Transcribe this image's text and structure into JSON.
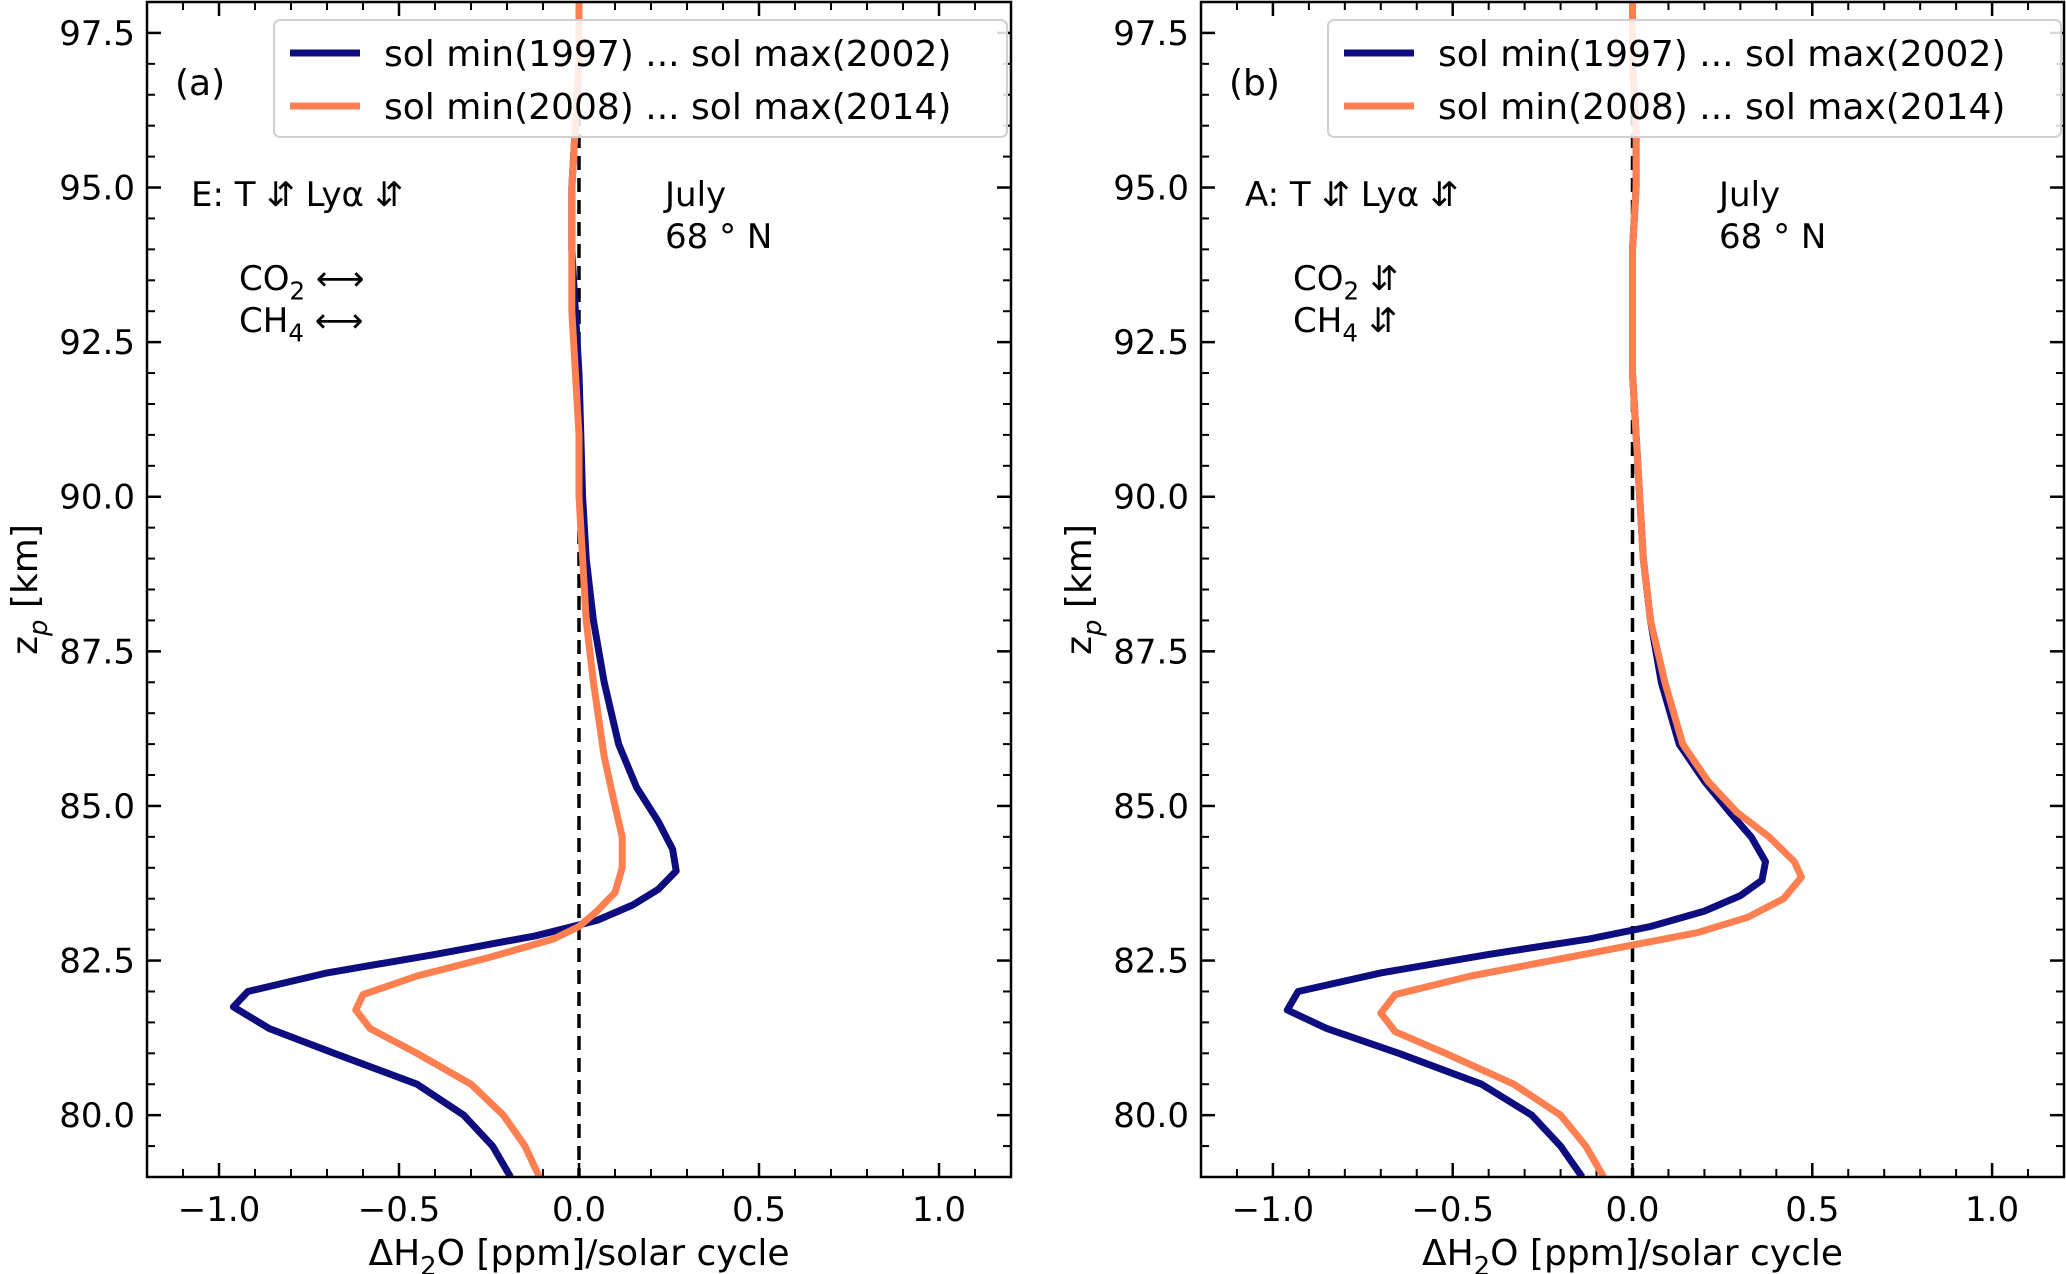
{
  "chart_data": [
    {
      "type": "line",
      "panel_label": "(a)",
      "xlabel": "ΔH₂O [ppm]/solar cycle",
      "ylabel": "z_p [km]",
      "xlim": [
        -1.2,
        1.2
      ],
      "ylim": [
        79.0,
        98.0
      ],
      "xticks": [
        -1.0,
        -0.5,
        0.0,
        0.5,
        1.0
      ],
      "xtick_labels": [
        "−1.0",
        "−0.5",
        "0.0",
        "0.5",
        "1.0"
      ],
      "yticks": [
        80.0,
        82.5,
        85.0,
        87.5,
        90.0,
        92.5,
        95.0,
        97.5
      ],
      "ytick_labels": [
        "80.0",
        "82.5",
        "85.0",
        "87.5",
        "90.0",
        "92.5",
        "95.0",
        "97.5"
      ],
      "grid": false,
      "legend_position": "top-right",
      "reference_line": {
        "x": 0.0,
        "style": "dashed",
        "color": "#000000"
      },
      "annotations": {
        "scenario": "E: T ⇵  Lyα ⇵",
        "co2": "CO₂ ⟷",
        "ch4": "CH₄ ⟷",
        "month": "July",
        "latitude": "68 ° N"
      },
      "series": [
        {
          "name": "sol min(1997) ... sol max(2002)",
          "color": "#0d0d80",
          "points": [
            [
              -0.19,
              79.0
            ],
            [
              -0.24,
              79.5
            ],
            [
              -0.32,
              80.0
            ],
            [
              -0.45,
              80.5
            ],
            [
              -0.68,
              81.0
            ],
            [
              -0.86,
              81.4
            ],
            [
              -0.96,
              81.75
            ],
            [
              -0.92,
              82.0
            ],
            [
              -0.7,
              82.3
            ],
            [
              -0.4,
              82.6
            ],
            [
              -0.12,
              82.9
            ],
            [
              0.05,
              83.15
            ],
            [
              0.15,
              83.4
            ],
            [
              0.22,
              83.65
            ],
            [
              0.27,
              83.95
            ],
            [
              0.26,
              84.3
            ],
            [
              0.22,
              84.75
            ],
            [
              0.16,
              85.3
            ],
            [
              0.11,
              86.0
            ],
            [
              0.07,
              87.0
            ],
            [
              0.04,
              88.0
            ],
            [
              0.02,
              89.0
            ],
            [
              0.01,
              90.0
            ],
            [
              0.005,
              91.0
            ],
            [
              0.0,
              92.0
            ],
            [
              -0.01,
              93.0
            ],
            [
              -0.02,
              94.0
            ],
            [
              -0.02,
              95.0
            ],
            [
              -0.01,
              96.0
            ],
            [
              0.0,
              97.0
            ],
            [
              0.0,
              98.0
            ]
          ]
        },
        {
          "name": "sol min(2008) ... sol max(2014)",
          "color": "#ff7f50",
          "points": [
            [
              -0.11,
              79.0
            ],
            [
              -0.15,
              79.5
            ],
            [
              -0.21,
              80.0
            ],
            [
              -0.3,
              80.5
            ],
            [
              -0.45,
              81.0
            ],
            [
              -0.58,
              81.4
            ],
            [
              -0.62,
              81.7
            ],
            [
              -0.6,
              81.95
            ],
            [
              -0.45,
              82.25
            ],
            [
              -0.25,
              82.55
            ],
            [
              -0.07,
              82.85
            ],
            [
              0.0,
              83.05
            ],
            [
              0.05,
              83.3
            ],
            [
              0.1,
              83.6
            ],
            [
              0.12,
              84.0
            ],
            [
              0.12,
              84.5
            ],
            [
              0.1,
              85.0
            ],
            [
              0.07,
              85.8
            ],
            [
              0.04,
              87.0
            ],
            [
              0.02,
              88.0
            ],
            [
              0.01,
              89.0
            ],
            [
              0.0,
              90.0
            ],
            [
              0.0,
              91.0
            ],
            [
              -0.01,
              92.0
            ],
            [
              -0.02,
              93.0
            ],
            [
              -0.02,
              94.0
            ],
            [
              -0.02,
              95.0
            ],
            [
              -0.01,
              96.0
            ],
            [
              0.0,
              97.0
            ],
            [
              0.0,
              98.0
            ]
          ]
        }
      ]
    },
    {
      "type": "line",
      "panel_label": "(b)",
      "xlabel": "ΔH₂O [ppm]/solar cycle",
      "ylabel": "z_p [km]",
      "xlim": [
        -1.2,
        1.2
      ],
      "ylim": [
        79.0,
        98.0
      ],
      "xticks": [
        -1.0,
        -0.5,
        0.0,
        0.5,
        1.0
      ],
      "xtick_labels": [
        "−1.0",
        "−0.5",
        "0.0",
        "0.5",
        "1.0"
      ],
      "yticks": [
        80.0,
        82.5,
        85.0,
        87.5,
        90.0,
        92.5,
        95.0,
        97.5
      ],
      "ytick_labels": [
        "80.0",
        "82.5",
        "85.0",
        "87.5",
        "90.0",
        "92.5",
        "95.0",
        "97.5"
      ],
      "grid": false,
      "legend_position": "top-right",
      "reference_line": {
        "x": 0.0,
        "style": "dashed",
        "color": "#000000"
      },
      "annotations": {
        "scenario": "A: T ⇵  Lyα ⇵",
        "co2": "CO₂ ⇵",
        "ch4": "CH₄ ⇵",
        "month": "July",
        "latitude": "68 ° N"
      },
      "series": [
        {
          "name": "sol min(1997) ... sol max(2002)",
          "color": "#0d0d80",
          "points": [
            [
              -0.14,
              79.0
            ],
            [
              -0.2,
              79.5
            ],
            [
              -0.28,
              80.0
            ],
            [
              -0.42,
              80.5
            ],
            [
              -0.65,
              81.0
            ],
            [
              -0.85,
              81.4
            ],
            [
              -0.96,
              81.7
            ],
            [
              -0.93,
              82.0
            ],
            [
              -0.7,
              82.3
            ],
            [
              -0.4,
              82.6
            ],
            [
              -0.12,
              82.85
            ],
            [
              0.05,
              83.05
            ],
            [
              0.2,
              83.3
            ],
            [
              0.3,
              83.55
            ],
            [
              0.36,
              83.8
            ],
            [
              0.37,
              84.1
            ],
            [
              0.33,
              84.5
            ],
            [
              0.27,
              84.9
            ],
            [
              0.2,
              85.4
            ],
            [
              0.13,
              86.0
            ],
            [
              0.08,
              87.0
            ],
            [
              0.05,
              88.0
            ],
            [
              0.03,
              89.0
            ],
            [
              0.02,
              90.0
            ],
            [
              0.01,
              91.0
            ],
            [
              0.0,
              92.0
            ],
            [
              0.0,
              93.0
            ],
            [
              0.0,
              94.0
            ],
            [
              0.01,
              95.0
            ],
            [
              0.01,
              96.0
            ],
            [
              0.0,
              97.0
            ],
            [
              0.0,
              98.0
            ]
          ]
        },
        {
          "name": "sol min(2008) ... sol max(2014)",
          "color": "#ff7f50",
          "points": [
            [
              -0.08,
              79.0
            ],
            [
              -0.13,
              79.5
            ],
            [
              -0.2,
              80.0
            ],
            [
              -0.33,
              80.5
            ],
            [
              -0.52,
              81.0
            ],
            [
              -0.66,
              81.35
            ],
            [
              -0.7,
              81.65
            ],
            [
              -0.66,
              81.95
            ],
            [
              -0.45,
              82.25
            ],
            [
              -0.18,
              82.55
            ],
            [
              0.0,
              82.75
            ],
            [
              0.18,
              82.95
            ],
            [
              0.32,
              83.2
            ],
            [
              0.42,
              83.5
            ],
            [
              0.47,
              83.85
            ],
            [
              0.45,
              84.1
            ],
            [
              0.38,
              84.5
            ],
            [
              0.29,
              84.9
            ],
            [
              0.21,
              85.4
            ],
            [
              0.14,
              86.0
            ],
            [
              0.09,
              87.0
            ],
            [
              0.05,
              88.0
            ],
            [
              0.03,
              89.0
            ],
            [
              0.02,
              90.0
            ],
            [
              0.01,
              91.0
            ],
            [
              0.0,
              92.0
            ],
            [
              0.0,
              93.0
            ],
            [
              0.0,
              94.0
            ],
            [
              0.01,
              95.0
            ],
            [
              0.01,
              96.0
            ],
            [
              0.0,
              97.0
            ],
            [
              0.0,
              98.0
            ]
          ]
        }
      ]
    }
  ]
}
